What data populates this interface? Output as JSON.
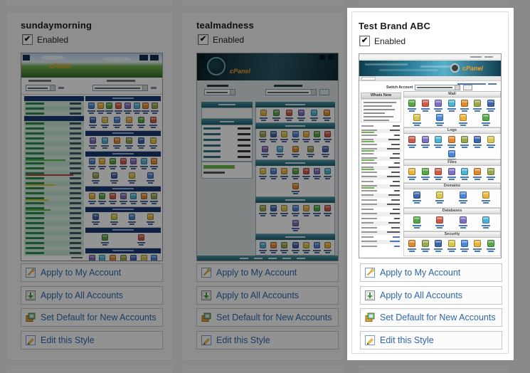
{
  "colors": {
    "link_blue": "#2e66a8",
    "spotlight_bg": "#ffffff",
    "page_bg": "#ececec",
    "cpanel_orange": "#f0a028"
  },
  "icon_palette": [
    "#4a86d8",
    "#e8b43a",
    "#55a845",
    "#cf5a48",
    "#7e6fc2",
    "#4ab4d4",
    "#e08a30",
    "#98a84e",
    "#3a66b0",
    "#d8c84a"
  ],
  "checkbox_glyph": "✔",
  "cards": [
    {
      "title": "sundaymorning",
      "enabled": true,
      "enabled_label": "Enabled",
      "buttons": [
        {
          "label": "Apply to My Account"
        },
        {
          "label": "Apply to All Accounts"
        },
        {
          "label": "Set Default for New Accounts"
        },
        {
          "label": "Edit this Style"
        }
      ],
      "thumb": {
        "variant": "sunday",
        "logo_text": "cPanel",
        "logo_color": "#f0a028",
        "banner": [
          "#b8d8ef",
          "#e6f1fa",
          "#79b455",
          "#2e6e26"
        ],
        "bar_color": "#1b3a72",
        "row_colors": [
          "#d6eee1",
          "#c3e5d4"
        ],
        "label_color": "#2f8a4c",
        "progress": [
          {
            "i": 10,
            "c": "#5cb848",
            "w": 0.8
          },
          {
            "i": 13,
            "c": "#c94335",
            "w": 0.95
          },
          {
            "i": 15,
            "c": "#d9c83a",
            "w": 0.6
          },
          {
            "i": 18,
            "c": "#d9c83a",
            "w": 0.45
          },
          {
            "i": 20,
            "c": "#5cb848",
            "w": 0.5
          }
        ],
        "left_rows": 30,
        "sections": [
          {
            "rows": [
              8,
              6
            ]
          },
          {
            "rows": [
              6
            ]
          },
          {
            "rows": [
              7,
              4
            ]
          },
          {
            "rows": [
              7
            ]
          },
          {
            "rows": [
              4
            ]
          },
          {
            "rows": [
              2
            ]
          },
          {
            "rows": [
              7
            ]
          }
        ]
      }
    },
    {
      "title": "tealmadness",
      "enabled": true,
      "enabled_label": "Enabled",
      "buttons": [
        {
          "label": "Apply to My Account"
        },
        {
          "label": "Apply to All Accounts"
        },
        {
          "label": "Set Default for New Accounts"
        },
        {
          "label": "Edit this Style"
        }
      ],
      "thumb": {
        "variant": "teal",
        "logo_text": "cPanel",
        "logo_color": "#f0a028",
        "bg": "#dde4e6",
        "banner": [
          "#081e26",
          "#2a5a68",
          "#0f2a33"
        ],
        "bar": [
          "#4993a2",
          "#1e5f6e"
        ],
        "stats_rows": 6,
        "sections": [
          {
            "rows": [
              6
            ]
          },
          {
            "rows": [
              7,
              5
            ]
          },
          {
            "rows": [
              7,
              1
            ]
          },
          {
            "rows": [
              7,
              1
            ]
          },
          {
            "rows": [
              7
            ]
          }
        ]
      }
    },
    {
      "title": "Test Brand ABC",
      "enabled": true,
      "enabled_label": "Enabled",
      "buttons": [
        {
          "label": "Apply to My Account"
        },
        {
          "label": "Apply to All Accounts"
        },
        {
          "label": "Set Default for New Accounts"
        },
        {
          "label": "Edit this Style"
        }
      ],
      "thumb": {
        "variant": "x3",
        "logo_text": "cPanel",
        "logo_color": "#f0a028",
        "banner": [
          "#0d3c4e",
          "#2a7d97",
          "#57b0c8",
          "#123f51"
        ],
        "switch_label": "Switch Account",
        "sidebar_title": "Whats New",
        "left_rows": 27,
        "sections": [
          {
            "label": "Mail",
            "rows": [
              7,
              4
            ]
          },
          {
            "label": "Logs",
            "rows": [
              7,
              1
            ]
          },
          {
            "label": "Files",
            "rows": [
              7
            ]
          },
          {
            "label": "Domains",
            "rows": [
              4
            ]
          },
          {
            "label": "Databases",
            "rows": [
              4
            ]
          },
          {
            "label": "Security",
            "rows": [
              7
            ]
          }
        ]
      }
    }
  ]
}
